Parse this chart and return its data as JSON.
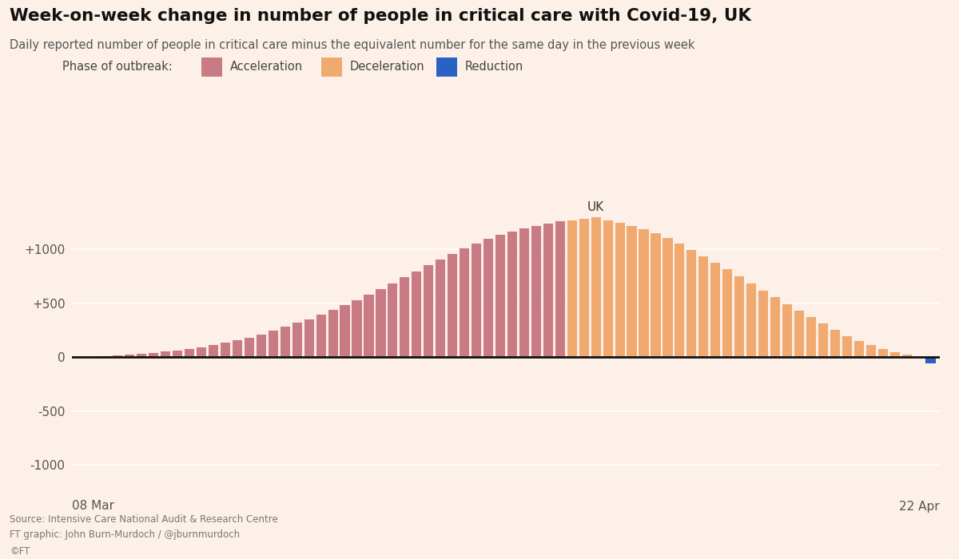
{
  "title": "Week-on-week change in number of people in critical care with Covid-19, UK",
  "subtitle": "Daily reported number of people in critical care minus the equivalent number for the same day in the previous week",
  "xlabel_left": "08 Mar",
  "xlabel_right": "22 Apr",
  "ytick_vals": [
    -1000,
    -500,
    0,
    500,
    1000
  ],
  "ytick_labels": [
    "-1000",
    "-500",
    "0",
    "+500",
    "+1000"
  ],
  "ylim": [
    -1200,
    1500
  ],
  "uk_label": "UK",
  "legend_title": "Phase of outbreak:",
  "legend_items": [
    "Acceleration",
    "Deceleration",
    "Reduction"
  ],
  "legend_colors": [
    "#c97b84",
    "#f0aa70",
    "#2962c4"
  ],
  "source_text": "Source: Intensive Care National Audit & Research Centre\nFT graphic: John Burn-Murdoch / @jburnmurdoch\n©FT",
  "background_color": "#fdf0e8",
  "bar_edgecolor": "#fdf0e8",
  "values": [
    5,
    8,
    18,
    25,
    32,
    40,
    48,
    58,
    70,
    85,
    100,
    118,
    140,
    163,
    190,
    220,
    255,
    290,
    325,
    360,
    400,
    445,
    490,
    535,
    585,
    638,
    692,
    748,
    805,
    860,
    915,
    965,
    1015,
    1065,
    1105,
    1145,
    1175,
    1205,
    1225,
    1250,
    1270,
    1280,
    1295,
    1305,
    1275,
    1255,
    1225,
    1195,
    1160,
    1115,
    1065,
    1005,
    945,
    885,
    825,
    758,
    692,
    628,
    562,
    502,
    442,
    378,
    318,
    258,
    205,
    160,
    118,
    82,
    52,
    28,
    10,
    -60
  ],
  "phases": [
    "acceleration",
    "acceleration",
    "acceleration",
    "acceleration",
    "acceleration",
    "acceleration",
    "acceleration",
    "acceleration",
    "acceleration",
    "acceleration",
    "acceleration",
    "acceleration",
    "acceleration",
    "acceleration",
    "acceleration",
    "acceleration",
    "acceleration",
    "acceleration",
    "acceleration",
    "acceleration",
    "acceleration",
    "acceleration",
    "acceleration",
    "acceleration",
    "acceleration",
    "acceleration",
    "acceleration",
    "acceleration",
    "acceleration",
    "acceleration",
    "acceleration",
    "acceleration",
    "acceleration",
    "acceleration",
    "acceleration",
    "acceleration",
    "acceleration",
    "acceleration",
    "acceleration",
    "acceleration",
    "acceleration",
    "deceleration",
    "deceleration",
    "deceleration",
    "deceleration",
    "deceleration",
    "deceleration",
    "deceleration",
    "deceleration",
    "deceleration",
    "deceleration",
    "deceleration",
    "deceleration",
    "deceleration",
    "deceleration",
    "deceleration",
    "deceleration",
    "deceleration",
    "deceleration",
    "deceleration",
    "deceleration",
    "deceleration",
    "deceleration",
    "deceleration",
    "deceleration",
    "deceleration",
    "deceleration",
    "deceleration",
    "deceleration",
    "deceleration",
    "deceleration",
    "reduction"
  ]
}
